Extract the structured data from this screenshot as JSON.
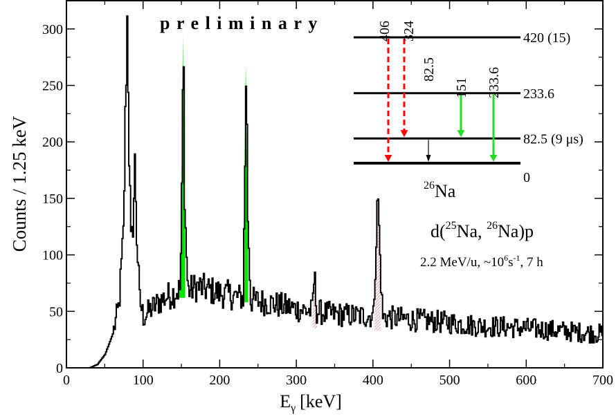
{
  "chart_data": {
    "type": "line",
    "title": "",
    "annotation_preliminary": "preliminary",
    "xlabel_main": "E",
    "xlabel_sub": "γ",
    "xlabel_unit": "[keV]",
    "ylabel": "Counts / 1.25 keV",
    "xlim": [
      0,
      700
    ],
    "ylim": [
      0,
      325
    ],
    "x_ticks": [
      0,
      100,
      200,
      300,
      400,
      500,
      600,
      700
    ],
    "y_ticks": [
      0,
      50,
      100,
      150,
      200,
      250,
      300
    ],
    "colors": {
      "line": "#000000",
      "gate_fill": "#00e400",
      "hatch": "#d06060",
      "dashed_arrow": "#ff0000",
      "solid_arrow": "#22dd22"
    },
    "spectrum_profile": [
      [
        30,
        0
      ],
      [
        40,
        3
      ],
      [
        50,
        12
      ],
      [
        60,
        30
      ],
      [
        68,
        55
      ],
      [
        74,
        120
      ],
      [
        77,
        250
      ],
      [
        79,
        315
      ],
      [
        81,
        200
      ],
      [
        84,
        100
      ],
      [
        87,
        140
      ],
      [
        89,
        185
      ],
      [
        91,
        120
      ],
      [
        95,
        60
      ],
      [
        100,
        45
      ],
      [
        110,
        52
      ],
      [
        120,
        58
      ],
      [
        130,
        63
      ],
      [
        140,
        66
      ],
      [
        148,
        70
      ],
      [
        150,
        150
      ],
      [
        152,
        295
      ],
      [
        154,
        140
      ],
      [
        158,
        68
      ],
      [
        170,
        72
      ],
      [
        180,
        70
      ],
      [
        190,
        68
      ],
      [
        200,
        66
      ],
      [
        210,
        65
      ],
      [
        220,
        63
      ],
      [
        230,
        62
      ],
      [
        232,
        150
      ],
      [
        234,
        274
      ],
      [
        236,
        140
      ],
      [
        240,
        60
      ],
      [
        260,
        58
      ],
      [
        280,
        55
      ],
      [
        300,
        52
      ],
      [
        320,
        50
      ],
      [
        323,
        82
      ],
      [
        326,
        50
      ],
      [
        340,
        48
      ],
      [
        360,
        47
      ],
      [
        380,
        46
      ],
      [
        400,
        46
      ],
      [
        404,
        120
      ],
      [
        406,
        155
      ],
      [
        408,
        110
      ],
      [
        412,
        45
      ],
      [
        430,
        44
      ],
      [
        460,
        42
      ],
      [
        500,
        40
      ],
      [
        540,
        37
      ],
      [
        580,
        36
      ],
      [
        620,
        34
      ],
      [
        660,
        32
      ],
      [
        700,
        30
      ]
    ],
    "gated_peaks": [
      {
        "center": 151,
        "half_width": 4,
        "base": 62,
        "color": "green"
      },
      {
        "center": 233.6,
        "half_width": 3.5,
        "base": 58,
        "color": "green"
      },
      {
        "center": 324,
        "half_width": 3,
        "base": 35,
        "color": "hatch"
      },
      {
        "center": 406,
        "half_width": 4,
        "base": 33,
        "color": "hatch"
      }
    ],
    "level_scheme": {
      "nucleus_mass": "26",
      "nucleus_symbol": "Na",
      "levels": [
        {
          "energy": 420,
          "label": "420 (15)"
        },
        {
          "energy": 233.6,
          "label": "233.6"
        },
        {
          "energy": 82.5,
          "label": "82.5 (9 μs)"
        },
        {
          "energy": 0,
          "label": "0"
        }
      ],
      "transitions": [
        {
          "label": "406",
          "from": 420,
          "to": 0,
          "style": "dashed-red"
        },
        {
          "label": "324",
          "from": 420,
          "to": 82.5,
          "style": "dashed-red"
        },
        {
          "label": "82.5",
          "from": 82.5,
          "to": 0,
          "style": "thin-black"
        },
        {
          "label": "151",
          "from": 233.6,
          "to": 82.5,
          "style": "solid-green"
        },
        {
          "label": "233.6",
          "from": 233.6,
          "to": 0,
          "style": "solid-green"
        }
      ]
    },
    "reaction": {
      "d": "d(",
      "a1": "25",
      "s1": "Na, ",
      "a2": "26",
      "s2": "Na)p"
    },
    "conditions": {
      "part1": "2.2 MeV/u, ~10",
      "exp1": "6",
      "part2": "s",
      "exp2": "-1",
      "part3": ", 7 h"
    }
  }
}
